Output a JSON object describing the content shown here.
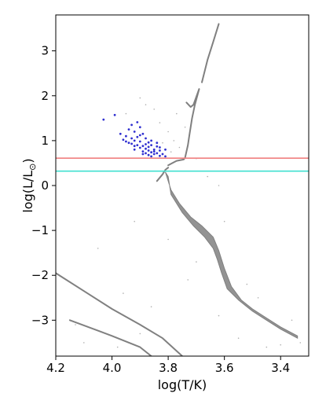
{
  "chart_data": {
    "type": "scatter",
    "title": "",
    "xlabel": "log(T/K)",
    "ylabel": "log(L/L",
    "ylabel_subscript": "⊙",
    "ylabel_close": ")",
    "x_inverted": true,
    "xlim": [
      4.2,
      3.3
    ],
    "ylim": [
      -3.8,
      3.8
    ],
    "x_ticks": [
      4.2,
      4.0,
      3.8,
      3.6,
      3.4
    ],
    "x_tick_labels": [
      "4.2",
      "4.0",
      "3.8",
      "3.6",
      "3.4"
    ],
    "y_ticks": [
      3,
      2,
      1,
      0,
      -1,
      -2,
      -3
    ],
    "y_tick_labels": [
      "3",
      "2",
      "1",
      "0",
      "−1",
      "−2",
      "−3"
    ],
    "grid": false,
    "legend": "none",
    "hlines": [
      {
        "y": 0.61,
        "color": "#f08080"
      },
      {
        "y": 0.32,
        "color": "#40e0d0"
      }
    ],
    "series": [
      {
        "kind": "curve",
        "color": "#808080",
        "points": [
          [
            3.8,
            0.45
          ],
          [
            3.785,
            0.5
          ],
          [
            3.77,
            0.55
          ],
          [
            3.745,
            0.58
          ],
          [
            3.74,
            0.62
          ],
          [
            3.73,
            0.9
          ],
          [
            3.725,
            1.1
          ],
          [
            3.715,
            1.5
          ],
          [
            3.705,
            1.8
          ],
          [
            3.69,
            2.15
          ],
          [
            3.71,
            1.8
          ],
          [
            3.72,
            1.75
          ],
          [
            3.735,
            1.85
          ]
        ]
      },
      {
        "kind": "band",
        "color": "#808080",
        "upper": [
          [
            3.81,
            0.3
          ],
          [
            3.79,
            -0.1
          ],
          [
            3.76,
            -0.4
          ],
          [
            3.72,
            -0.7
          ],
          [
            3.68,
            -0.9
          ],
          [
            3.64,
            -1.15
          ],
          [
            3.62,
            -1.45
          ],
          [
            3.6,
            -1.85
          ],
          [
            3.575,
            -2.25
          ],
          [
            3.54,
            -2.55
          ],
          [
            3.5,
            -2.75
          ],
          [
            3.45,
            -2.95
          ],
          [
            3.4,
            -3.15
          ],
          [
            3.34,
            -3.35
          ]
        ],
        "lower": [
          [
            3.8,
            0.2
          ],
          [
            3.79,
            -0.2
          ],
          [
            3.75,
            -0.6
          ],
          [
            3.71,
            -0.9
          ],
          [
            3.67,
            -1.15
          ],
          [
            3.64,
            -1.4
          ],
          [
            3.625,
            -1.65
          ],
          [
            3.61,
            -1.95
          ],
          [
            3.59,
            -2.3
          ],
          [
            3.55,
            -2.55
          ],
          [
            3.52,
            -2.7
          ],
          [
            3.5,
            -2.8
          ],
          [
            3.45,
            -3.0
          ],
          [
            3.4,
            -3.2
          ],
          [
            3.34,
            -3.4
          ]
        ]
      },
      {
        "kind": "curve",
        "color": "#808080",
        "points": [
          [
            3.84,
            0.1
          ],
          [
            3.82,
            0.25
          ],
          [
            3.81,
            0.35
          ],
          [
            3.8,
            0.4
          ]
        ]
      },
      {
        "kind": "curve",
        "color": "#808080",
        "points": [
          [
            4.2,
            -1.95
          ],
          [
            4.1,
            -2.35
          ],
          [
            4.0,
            -2.75
          ],
          [
            3.9,
            -3.1
          ],
          [
            3.82,
            -3.4
          ],
          [
            3.75,
            -3.8
          ]
        ]
      },
      {
        "kind": "curve",
        "color": "#808080",
        "points": [
          [
            4.15,
            -3.0
          ],
          [
            4.0,
            -3.35
          ],
          [
            3.9,
            -3.6
          ],
          [
            3.86,
            -3.8
          ]
        ]
      },
      {
        "kind": "curve",
        "color": "#808080",
        "points": [
          [
            3.68,
            2.3
          ],
          [
            3.66,
            2.8
          ],
          [
            3.64,
            3.2
          ],
          [
            3.62,
            3.6
          ]
        ]
      },
      {
        "kind": "points",
        "color": "#3030d0",
        "points": [
          [
            3.99,
            1.57
          ],
          [
            4.03,
            1.47
          ],
          [
            3.91,
            1.41
          ],
          [
            3.93,
            1.35
          ],
          [
            3.9,
            1.3
          ],
          [
            3.94,
            1.25
          ],
          [
            3.92,
            1.2
          ],
          [
            3.89,
            1.15
          ],
          [
            3.95,
            1.1
          ],
          [
            3.91,
            1.08
          ],
          [
            3.88,
            1.05
          ],
          [
            3.96,
            1.02
          ],
          [
            3.92,
            1.0
          ],
          [
            3.9,
            0.98
          ],
          [
            3.87,
            0.96
          ],
          [
            3.93,
            0.93
          ],
          [
            3.91,
            0.9
          ],
          [
            3.89,
            0.88
          ],
          [
            3.86,
            0.9
          ],
          [
            3.84,
            0.87
          ],
          [
            3.9,
            0.84
          ],
          [
            3.88,
            0.82
          ],
          [
            3.85,
            0.8
          ],
          [
            3.92,
            0.8
          ],
          [
            3.87,
            0.78
          ],
          [
            3.83,
            0.78
          ],
          [
            3.89,
            0.76
          ],
          [
            3.86,
            0.74
          ],
          [
            3.84,
            0.72
          ],
          [
            3.88,
            0.72
          ],
          [
            3.85,
            0.7
          ],
          [
            3.82,
            0.7
          ],
          [
            3.87,
            0.68
          ],
          [
            3.83,
            0.66
          ],
          [
            3.86,
            0.65
          ],
          [
            3.81,
            0.65
          ],
          [
            3.94,
            0.95
          ],
          [
            3.97,
            1.15
          ],
          [
            3.88,
            0.92
          ],
          [
            3.83,
            0.85
          ],
          [
            3.9,
            1.12
          ],
          [
            3.86,
            1.0
          ],
          [
            3.92,
            0.88
          ],
          [
            3.84,
            0.95
          ],
          [
            3.89,
            0.7
          ],
          [
            3.81,
            0.8
          ],
          [
            3.87,
            0.86
          ],
          [
            3.95,
            0.98
          ],
          [
            3.93,
            1.05
          ],
          [
            3.85,
            0.76
          ]
        ]
      },
      {
        "kind": "points",
        "color": "#b0b0b0",
        "points": [
          [
            3.9,
            1.95
          ],
          [
            3.85,
            1.7
          ],
          [
            3.83,
            1.4
          ],
          [
            3.8,
            1.2
          ],
          [
            3.78,
            1.0
          ],
          [
            3.82,
            0.95
          ],
          [
            3.79,
            0.75
          ],
          [
            3.76,
            0.85
          ],
          [
            3.95,
            1.6
          ],
          [
            3.88,
            1.8
          ],
          [
            3.92,
            -0.8
          ],
          [
            4.05,
            -1.4
          ],
          [
            3.96,
            -2.4
          ],
          [
            3.98,
            -3.6
          ],
          [
            4.13,
            -3.1
          ],
          [
            4.1,
            -3.5
          ],
          [
            3.86,
            -2.7
          ],
          [
            3.9,
            -3.3
          ],
          [
            3.7,
            -1.7
          ],
          [
            3.73,
            -2.1
          ],
          [
            3.62,
            -2.9
          ],
          [
            3.55,
            -3.4
          ],
          [
            3.45,
            -3.6
          ],
          [
            3.4,
            -3.55
          ],
          [
            3.33,
            -3.5
          ],
          [
            3.66,
            0.2
          ],
          [
            3.62,
            0.0
          ],
          [
            3.7,
            0.6
          ],
          [
            3.6,
            -0.8
          ],
          [
            3.52,
            -2.2
          ],
          [
            3.48,
            -2.5
          ],
          [
            3.36,
            -3.0
          ],
          [
            3.8,
            -1.2
          ],
          [
            3.77,
            1.6
          ],
          [
            3.74,
            1.3
          ]
        ]
      }
    ]
  }
}
